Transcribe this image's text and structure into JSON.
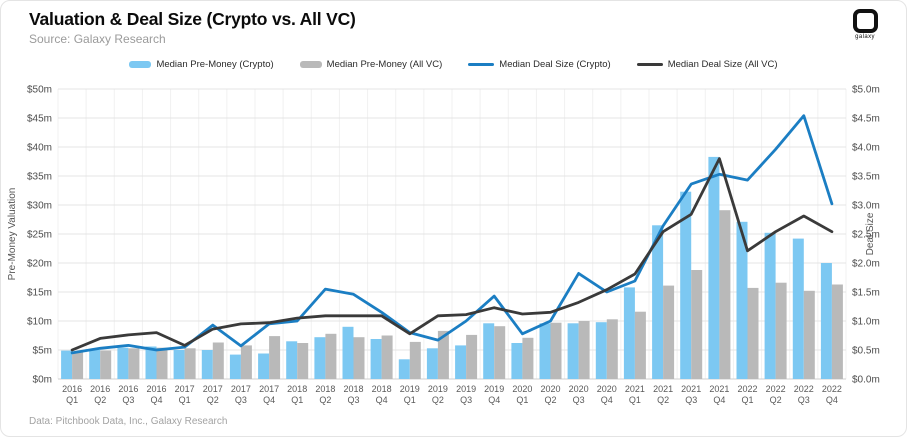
{
  "header": {
    "title": "Valuation & Deal Size (Crypto vs. All VC)",
    "subtitle": "Source: Galaxy Research"
  },
  "logo": {
    "text": "galaxy"
  },
  "footer": {
    "text": "Data: Pitchbook Data, Inc., Galaxy Research"
  },
  "chart_data": {
    "type": "bar+line combo",
    "categories": [
      "2016 Q1",
      "2016 Q2",
      "2016 Q3",
      "2016 Q4",
      "2017 Q1",
      "2017 Q2",
      "2017 Q3",
      "2017 Q4",
      "2018 Q1",
      "2018 Q2",
      "2018 Q3",
      "2018 Q4",
      "2019 Q1",
      "2019 Q2",
      "2019 Q3",
      "2019 Q4",
      "2020 Q1",
      "2020 Q2",
      "2020 Q3",
      "2020 Q4",
      "2021 Q1",
      "2021 Q2",
      "2021 Q3",
      "2021 Q4",
      "2022 Q1",
      "2022 Q2",
      "2022 Q3",
      "2022 Q4"
    ],
    "series": [
      {
        "name": "Median Pre-Money (Crypto)",
        "type": "bar",
        "axis": "left",
        "color": "#7cc8f2",
        "values": [
          4.9,
          5.0,
          5.4,
          5.6,
          5.0,
          5.0,
          4.2,
          4.4,
          6.5,
          7.2,
          9.0,
          6.9,
          3.4,
          5.3,
          5.8,
          9.6,
          6.2,
          9.6,
          9.6,
          9.8,
          15.8,
          26.5,
          32.3,
          38.3,
          27.1,
          25.2,
          24.2,
          20.0
        ]
      },
      {
        "name": "Median Pre-Money (All VC)",
        "type": "bar",
        "axis": "left",
        "color": "#b9b9b9",
        "values": [
          4.7,
          4.9,
          5.3,
          5.4,
          5.3,
          6.3,
          5.8,
          7.4,
          6.2,
          7.8,
          7.2,
          7.5,
          6.4,
          8.3,
          7.6,
          9.1,
          7.1,
          9.7,
          10.0,
          10.3,
          11.6,
          16.1,
          18.8,
          29.1,
          15.7,
          16.6,
          15.2,
          16.3
        ]
      },
      {
        "name": "Median Deal Size (Crypto)",
        "type": "line",
        "axis": "right",
        "color": "#1b7ec3",
        "values": [
          0.45,
          0.53,
          0.58,
          0.5,
          0.55,
          0.93,
          0.57,
          0.95,
          1.0,
          1.55,
          1.46,
          1.15,
          0.8,
          0.67,
          1.0,
          1.43,
          0.78,
          1.0,
          1.82,
          1.5,
          1.69,
          2.64,
          3.36,
          3.53,
          3.43,
          3.96,
          4.54,
          3.02
        ]
      },
      {
        "name": "Median Deal Size (All VC)",
        "type": "line",
        "axis": "right",
        "color": "#3a3a3a",
        "values": [
          0.5,
          0.7,
          0.76,
          0.8,
          0.58,
          0.86,
          0.95,
          0.97,
          1.05,
          1.09,
          1.09,
          1.09,
          0.78,
          1.09,
          1.11,
          1.23,
          1.12,
          1.15,
          1.32,
          1.54,
          1.81,
          2.54,
          2.84,
          3.8,
          2.21,
          2.54,
          2.81,
          2.54
        ]
      }
    ],
    "left_axis": {
      "label": "Pre-Money Valuation",
      "min": 0,
      "max": 50,
      "ticks": [
        "$0m",
        "$5m",
        "$10m",
        "$15m",
        "$20m",
        "$25m",
        "$30m",
        "$35m",
        "$40m",
        "$45m",
        "$50m"
      ]
    },
    "right_axis": {
      "label": "Deal Size",
      "min": 0,
      "max": 5,
      "ticks": [
        "$0.0m",
        "$0.5m",
        "$1.0m",
        "$1.5m",
        "$2.0m",
        "$2.5m",
        "$3.0m",
        "$3.5m",
        "$4.0m",
        "$4.5m",
        "$5.0m"
      ]
    },
    "grid": "horizontal + faint vertical",
    "legend_position": "top-center"
  }
}
